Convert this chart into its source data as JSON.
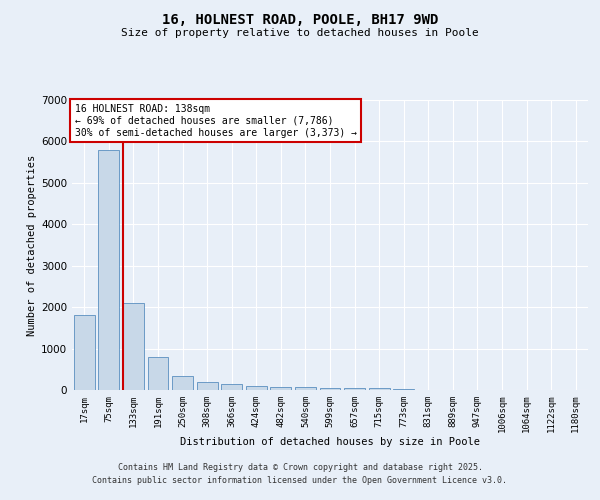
{
  "title": "16, HOLNEST ROAD, POOLE, BH17 9WD",
  "subtitle": "Size of property relative to detached houses in Poole",
  "xlabel": "Distribution of detached houses by size in Poole",
  "ylabel": "Number of detached properties",
  "categories": [
    "17sqm",
    "75sqm",
    "133sqm",
    "191sqm",
    "250sqm",
    "308sqm",
    "366sqm",
    "424sqm",
    "482sqm",
    "540sqm",
    "599sqm",
    "657sqm",
    "715sqm",
    "773sqm",
    "831sqm",
    "889sqm",
    "947sqm",
    "1006sqm",
    "1064sqm",
    "1122sqm",
    "1180sqm"
  ],
  "values": [
    1800,
    5800,
    2100,
    800,
    330,
    200,
    140,
    100,
    80,
    70,
    55,
    50,
    45,
    20,
    10,
    8,
    5,
    4,
    3,
    2,
    2
  ],
  "bar_color": "#c8d8e8",
  "bar_edge_color": "#5a8fc0",
  "marker_bar_index": 2,
  "marker_color": "#cc0000",
  "annotation_text": "16 HOLNEST ROAD: 138sqm\n← 69% of detached houses are smaller (7,786)\n30% of semi-detached houses are larger (3,373) →",
  "annotation_box_color": "#cc0000",
  "bg_color": "#e8eff8",
  "plot_bg_color": "#e8eff8",
  "grid_color": "#ffffff",
  "ylim": [
    0,
    7000
  ],
  "yticks": [
    0,
    1000,
    2000,
    3000,
    4000,
    5000,
    6000,
    7000
  ],
  "footer_line1": "Contains HM Land Registry data © Crown copyright and database right 2025.",
  "footer_line2": "Contains public sector information licensed under the Open Government Licence v3.0."
}
